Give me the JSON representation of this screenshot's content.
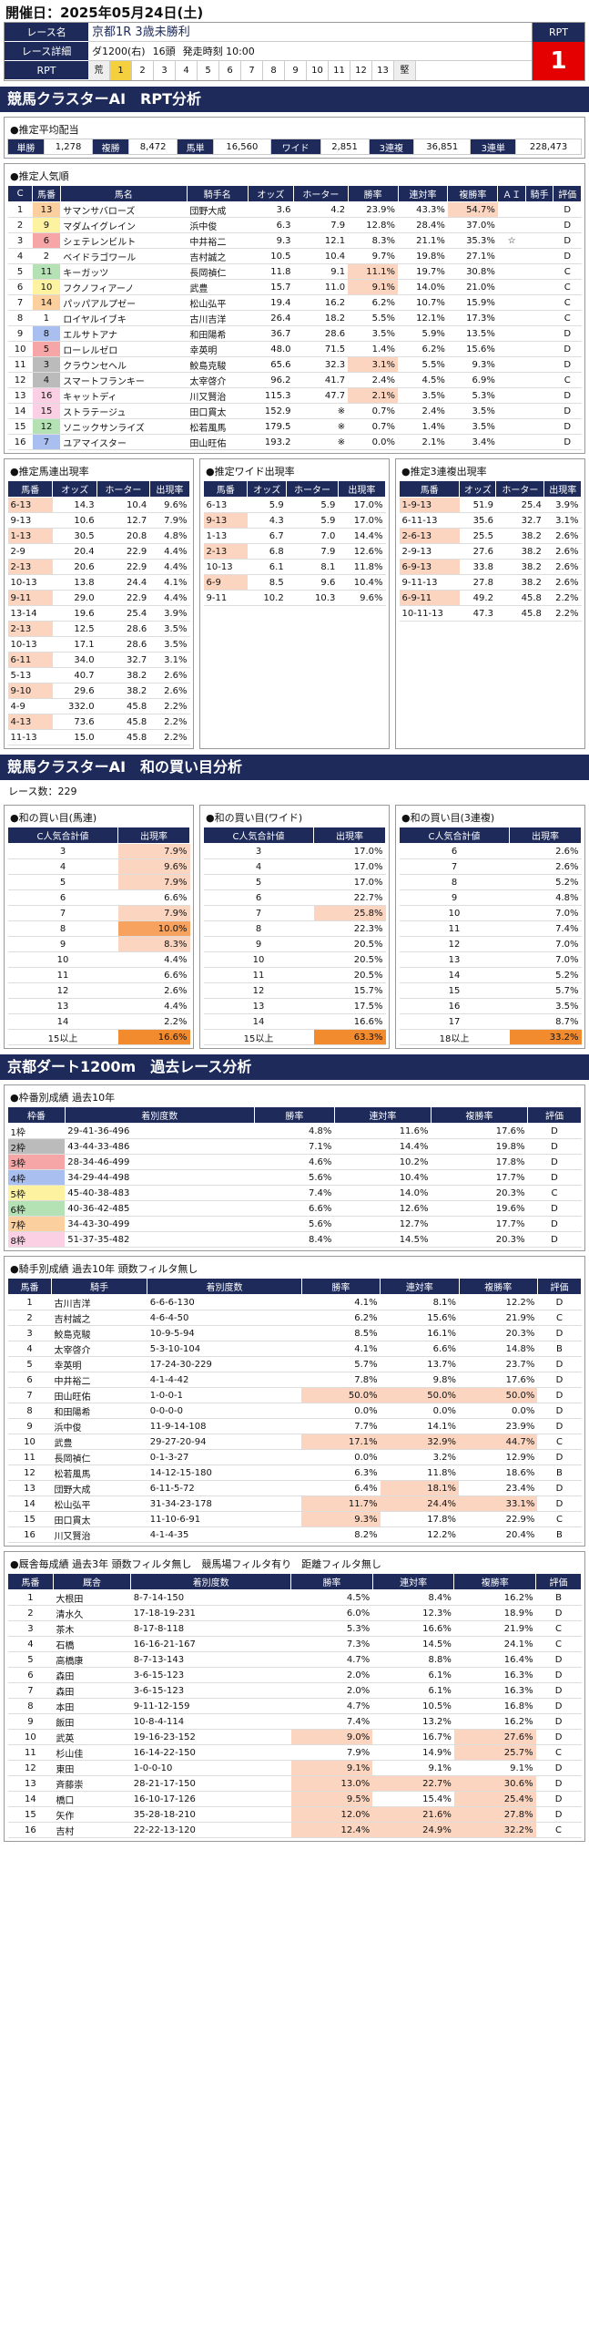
{
  "date": "開催日：2025年05月24日(土)",
  "race": {
    "labels": [
      "レース名",
      "レース詳細",
      "RPT"
    ],
    "title": "京都1R 3歳未勝利",
    "detail": [
      "ダ1200(右)",
      "16頭",
      "発走時刻 10:00"
    ],
    "rpt_cells": [
      "荒",
      "1",
      "2",
      "3",
      "4",
      "5",
      "6",
      "7",
      "8",
      "9",
      "10",
      "11",
      "12",
      "13",
      "堅"
    ],
    "rpt_label": "RPT",
    "rpt_value": "1"
  },
  "sec1": "競馬クラスターAI　RPT分析",
  "haito": {
    "title": "●推定平均配当",
    "items": [
      [
        "単勝",
        "1,278"
      ],
      [
        "複勝",
        "8,472"
      ],
      [
        "馬単",
        "16,560"
      ],
      [
        "ワイド",
        "2,851"
      ],
      [
        "3連複",
        "36,851"
      ],
      [
        "3連単",
        "228,473"
      ]
    ]
  },
  "ninki": {
    "title": "●推定人気順",
    "headers": [
      "C",
      "馬番",
      "馬名",
      "騎手名",
      "オッズ",
      "ホーター",
      "勝率",
      "連対率",
      "複勝率",
      "ＡＩ",
      "騎手",
      "評価"
    ],
    "rows": [
      [
        "1",
        "13",
        "サマンサバローズ",
        "団野大成",
        "3.6",
        "4.2",
        "23.9%",
        "43.3%",
        "54.7%",
        "",
        "",
        "D"
      ],
      [
        "2",
        "9",
        "マダムイグレイン",
        "浜中俊",
        "6.3",
        "7.9",
        "12.8%",
        "28.4%",
        "37.0%",
        "",
        "",
        "D"
      ],
      [
        "3",
        "6",
        "シェテレンビルト",
        "中井裕二",
        "9.3",
        "12.1",
        "8.3%",
        "21.1%",
        "35.3%",
        "☆",
        "",
        "D"
      ],
      [
        "4",
        "2",
        "ベイドラゴワール",
        "吉村誠之",
        "10.5",
        "10.4",
        "9.7%",
        "19.8%",
        "27.1%",
        "",
        "",
        "D"
      ],
      [
        "5",
        "11",
        "キーガッツ",
        "長岡禎仁",
        "11.8",
        "9.1",
        "11.1%",
        "19.7%",
        "30.8%",
        "",
        "",
        "C"
      ],
      [
        "6",
        "10",
        "フクノフィアーノ",
        "武豊",
        "15.7",
        "11.0",
        "9.1%",
        "14.0%",
        "21.0%",
        "",
        "",
        "C"
      ],
      [
        "7",
        "14",
        "パッパアルプゼー",
        "松山弘平",
        "19.4",
        "16.2",
        "6.2%",
        "10.7%",
        "15.9%",
        "",
        "",
        "C"
      ],
      [
        "8",
        "1",
        "ロイヤルイブキ",
        "古川吉洋",
        "26.4",
        "18.2",
        "5.5%",
        "12.1%",
        "17.3%",
        "",
        "",
        "C"
      ],
      [
        "9",
        "8",
        "エルサトアナ",
        "和田陽希",
        "36.7",
        "28.6",
        "3.5%",
        "5.9%",
        "13.5%",
        "",
        "",
        "D"
      ],
      [
        "10",
        "5",
        "ローレルゼロ",
        "幸英明",
        "48.0",
        "71.5",
        "1.4%",
        "6.2%",
        "15.6%",
        "",
        "",
        "D"
      ],
      [
        "11",
        "3",
        "クラウンセヘル",
        "鮫島克駿",
        "65.6",
        "32.3",
        "3.1%",
        "5.5%",
        "9.3%",
        "",
        "",
        "D"
      ],
      [
        "12",
        "4",
        "スマートフランキー",
        "太宰啓介",
        "96.2",
        "41.7",
        "2.4%",
        "4.5%",
        "6.9%",
        "",
        "",
        "C"
      ],
      [
        "13",
        "16",
        "キャットディ",
        "川又賢治",
        "115.3",
        "47.7",
        "2.1%",
        "3.5%",
        "5.3%",
        "",
        "",
        "D"
      ],
      [
        "14",
        "15",
        "ストラテージュ",
        "田口貫太",
        "152.9",
        "※",
        "0.7%",
        "2.4%",
        "3.5%",
        "",
        "",
        "D"
      ],
      [
        "15",
        "12",
        "ソニックサンライズ",
        "松若風馬",
        "179.5",
        "※",
        "0.7%",
        "1.4%",
        "3.5%",
        "",
        "",
        "D"
      ],
      [
        "16",
        "7",
        "ユアマイスター",
        "田山旺佑",
        "193.2",
        "※",
        "0.0%",
        "2.1%",
        "3.4%",
        "",
        "",
        "D"
      ]
    ]
  },
  "umatan": {
    "title": "●推定馬連出現率",
    "headers": [
      "馬番",
      "オッズ",
      "ホーター",
      "出現率"
    ],
    "rows": [
      [
        "6-13",
        "14.3",
        "10.4",
        "9.6%"
      ],
      [
        "9-13",
        "10.6",
        "12.7",
        "7.9%"
      ],
      [
        "1-13",
        "30.5",
        "20.8",
        "4.8%"
      ],
      [
        "2-9",
        "20.4",
        "22.9",
        "4.4%"
      ],
      [
        "2-13",
        "20.6",
        "22.9",
        "4.4%"
      ],
      [
        "10-13",
        "13.8",
        "24.4",
        "4.1%"
      ],
      [
        "9-11",
        "29.0",
        "22.9",
        "4.4%"
      ],
      [
        "13-14",
        "19.6",
        "25.4",
        "3.9%"
      ],
      [
        "2-13",
        "12.5",
        "28.6",
        "3.5%"
      ],
      [
        "10-13",
        "17.1",
        "28.6",
        "3.5%"
      ],
      [
        "6-11",
        "34.0",
        "32.7",
        "3.1%"
      ],
      [
        "5-13",
        "40.7",
        "38.2",
        "2.6%"
      ],
      [
        "9-10",
        "29.6",
        "38.2",
        "2.6%"
      ],
      [
        "4-9",
        "332.0",
        "45.8",
        "2.2%"
      ],
      [
        "4-13",
        "73.6",
        "45.8",
        "2.2%"
      ],
      [
        "11-13",
        "15.0",
        "45.8",
        "2.2%"
      ]
    ]
  },
  "wide": {
    "title": "●推定ワイド出現率",
    "headers": [
      "馬番",
      "オッズ",
      "ホーター",
      "出現率"
    ],
    "rows": [
      [
        "6-13",
        "5.9",
        "5.9",
        "17.0%"
      ],
      [
        "9-13",
        "4.3",
        "5.9",
        "17.0%"
      ],
      [
        "1-13",
        "6.7",
        "7.0",
        "14.4%"
      ],
      [
        "2-13",
        "6.8",
        "7.9",
        "12.6%"
      ],
      [
        "10-13",
        "6.1",
        "8.1",
        "11.8%"
      ],
      [
        "6-9",
        "8.5",
        "9.6",
        "10.4%"
      ],
      [
        "9-11",
        "10.2",
        "10.3",
        "9.6%"
      ]
    ]
  },
  "sanfuku": {
    "title": "●推定3連複出現率",
    "headers": [
      "馬番",
      "オッズ",
      "ホーター",
      "出現率"
    ],
    "rows": [
      [
        "1-9-13",
        "51.9",
        "25.4",
        "3.9%"
      ],
      [
        "6-11-13",
        "35.6",
        "32.7",
        "3.1%"
      ],
      [
        "2-6-13",
        "25.5",
        "38.2",
        "2.6%"
      ],
      [
        "2-9-13",
        "27.6",
        "38.2",
        "2.6%"
      ],
      [
        "6-9-13",
        "33.8",
        "38.2",
        "2.6%"
      ],
      [
        "9-11-13",
        "27.8",
        "38.2",
        "2.6%"
      ],
      [
        "6-9-11",
        "49.2",
        "45.8",
        "2.2%"
      ],
      [
        "10-11-13",
        "47.3",
        "45.8",
        "2.2%"
      ]
    ]
  },
  "sec2": "競馬クラスターAI　和の買い目分析",
  "race_count": "レース数：229",
  "wa1": {
    "title": "●和の買い目(馬連)",
    "headers": [
      "C人気合計値",
      "出現率"
    ],
    "rows": [
      [
        "3",
        "7.9%"
      ],
      [
        "4",
        "9.6%"
      ],
      [
        "5",
        "7.9%"
      ],
      [
        "6",
        "6.6%"
      ],
      [
        "7",
        "7.9%"
      ],
      [
        "8",
        "10.0%"
      ],
      [
        "9",
        "8.3%"
      ],
      [
        "10",
        "4.4%"
      ],
      [
        "11",
        "6.6%"
      ],
      [
        "12",
        "2.6%"
      ],
      [
        "13",
        "4.4%"
      ],
      [
        "14",
        "2.2%"
      ],
      [
        "15以上",
        "16.6%"
      ]
    ]
  },
  "wa2": {
    "title": "●和の買い目(ワイド)",
    "headers": [
      "C人気合計値",
      "出現率"
    ],
    "rows": [
      [
        "3",
        "17.0%"
      ],
      [
        "4",
        "17.0%"
      ],
      [
        "5",
        "17.0%"
      ],
      [
        "6",
        "22.7%"
      ],
      [
        "7",
        "25.8%"
      ],
      [
        "8",
        "22.3%"
      ],
      [
        "9",
        "20.5%"
      ],
      [
        "10",
        "20.5%"
      ],
      [
        "11",
        "20.5%"
      ],
      [
        "12",
        "15.7%"
      ],
      [
        "13",
        "17.5%"
      ],
      [
        "14",
        "16.6%"
      ],
      [
        "15以上",
        "63.3%"
      ]
    ]
  },
  "wa3": {
    "title": "●和の買い目(3連複)",
    "headers": [
      "C人気合計値",
      "出現率"
    ],
    "rows": [
      [
        "6",
        "2.6%"
      ],
      [
        "7",
        "2.6%"
      ],
      [
        "8",
        "5.2%"
      ],
      [
        "9",
        "4.8%"
      ],
      [
        "10",
        "7.0%"
      ],
      [
        "11",
        "7.4%"
      ],
      [
        "12",
        "7.0%"
      ],
      [
        "13",
        "7.0%"
      ],
      [
        "14",
        "5.2%"
      ],
      [
        "15",
        "5.7%"
      ],
      [
        "16",
        "3.5%"
      ],
      [
        "17",
        "8.7%"
      ],
      [
        "18以上",
        "33.2%"
      ]
    ]
  },
  "sec3": "京都ダート1200m　過去レース分析",
  "waku": {
    "title": "●枠番別成績 過去10年",
    "headers": [
      "枠番",
      "着別度数",
      "勝率",
      "連対率",
      "複勝率",
      "評価"
    ],
    "rows": [
      [
        "1枠",
        "29-41-36-496",
        "4.8%",
        "11.6%",
        "17.6%",
        "D"
      ],
      [
        "2枠",
        "43-44-33-486",
        "7.1%",
        "14.4%",
        "19.8%",
        "D"
      ],
      [
        "3枠",
        "28-34-46-499",
        "4.6%",
        "10.2%",
        "17.8%",
        "D"
      ],
      [
        "4枠",
        "34-29-44-498",
        "5.6%",
        "10.4%",
        "17.7%",
        "D"
      ],
      [
        "5枠",
        "45-40-38-483",
        "7.4%",
        "14.0%",
        "20.3%",
        "C"
      ],
      [
        "6枠",
        "40-36-42-485",
        "6.6%",
        "12.6%",
        "19.6%",
        "D"
      ],
      [
        "7枠",
        "34-43-30-499",
        "5.6%",
        "12.7%",
        "17.7%",
        "D"
      ],
      [
        "8枠",
        "51-37-35-482",
        "8.4%",
        "14.5%",
        "20.3%",
        "D"
      ]
    ]
  },
  "kishu": {
    "title": "●騎手別成績 過去10年 頭数フィルタ無し",
    "headers": [
      "馬番",
      "騎手",
      "着別度数",
      "勝率",
      "連対率",
      "複勝率",
      "評価"
    ],
    "rows": [
      [
        "1",
        "古川吉洋",
        "6-6-6-130",
        "4.1%",
        "8.1%",
        "12.2%",
        "D"
      ],
      [
        "2",
        "吉村誠之",
        "4-6-4-50",
        "6.2%",
        "15.6%",
        "21.9%",
        "C"
      ],
      [
        "3",
        "鮫島克駿",
        "10-9-5-94",
        "8.5%",
        "16.1%",
        "20.3%",
        "D"
      ],
      [
        "4",
        "太宰啓介",
        "5-3-10-104",
        "4.1%",
        "6.6%",
        "14.8%",
        "B"
      ],
      [
        "5",
        "幸英明",
        "17-24-30-229",
        "5.7%",
        "13.7%",
        "23.7%",
        "D"
      ],
      [
        "6",
        "中井裕二",
        "4-1-4-42",
        "7.8%",
        "9.8%",
        "17.6%",
        "D"
      ],
      [
        "7",
        "田山旺佑",
        "1-0-0-1",
        "50.0%",
        "50.0%",
        "50.0%",
        "D"
      ],
      [
        "8",
        "和田陽希",
        "0-0-0-0",
        "0.0%",
        "0.0%",
        "0.0%",
        "D"
      ],
      [
        "9",
        "浜中俊",
        "11-9-14-108",
        "7.7%",
        "14.1%",
        "23.9%",
        "D"
      ],
      [
        "10",
        "武豊",
        "29-27-20-94",
        "17.1%",
        "32.9%",
        "44.7%",
        "C"
      ],
      [
        "11",
        "長岡禎仁",
        "0-1-3-27",
        "0.0%",
        "3.2%",
        "12.9%",
        "D"
      ],
      [
        "12",
        "松若風馬",
        "14-12-15-180",
        "6.3%",
        "11.8%",
        "18.6%",
        "B"
      ],
      [
        "13",
        "団野大成",
        "6-11-5-72",
        "6.4%",
        "18.1%",
        "23.4%",
        "D"
      ],
      [
        "14",
        "松山弘平",
        "31-34-23-178",
        "11.7%",
        "24.4%",
        "33.1%",
        "D"
      ],
      [
        "15",
        "田口貫太",
        "11-10-6-91",
        "9.3%",
        "17.8%",
        "22.9%",
        "C"
      ],
      [
        "16",
        "川又賢治",
        "4-1-4-35",
        "8.2%",
        "12.2%",
        "20.4%",
        "B"
      ]
    ]
  },
  "kyusha": {
    "title": "●厩舎毎成績 過去3年 頭数フィルタ無し　競馬場フィルタ有り　距離フィルタ無し",
    "headers": [
      "馬番",
      "厩舎",
      "着別度数",
      "勝率",
      "連対率",
      "複勝率",
      "評価"
    ],
    "rows": [
      [
        "1",
        "大根田",
        "8-7-14-150",
        "4.5%",
        "8.4%",
        "16.2%",
        "B"
      ],
      [
        "2",
        "清水久",
        "17-18-19-231",
        "6.0%",
        "12.3%",
        "18.9%",
        "D"
      ],
      [
        "3",
        "茶木",
        "8-17-8-118",
        "5.3%",
        "16.6%",
        "21.9%",
        "C"
      ],
      [
        "4",
        "石橋",
        "16-16-21-167",
        "7.3%",
        "14.5%",
        "24.1%",
        "C"
      ],
      [
        "5",
        "高橋康",
        "8-7-13-143",
        "4.7%",
        "8.8%",
        "16.4%",
        "D"
      ],
      [
        "6",
        "森田",
        "3-6-15-123",
        "2.0%",
        "6.1%",
        "16.3%",
        "D"
      ],
      [
        "7",
        "森田",
        "3-6-15-123",
        "2.0%",
        "6.1%",
        "16.3%",
        "D"
      ],
      [
        "8",
        "本田",
        "9-11-12-159",
        "4.7%",
        "10.5%",
        "16.8%",
        "D"
      ],
      [
        "9",
        "飯田",
        "10-8-4-114",
        "7.4%",
        "13.2%",
        "16.2%",
        "D"
      ],
      [
        "10",
        "武英",
        "19-16-23-152",
        "9.0%",
        "16.7%",
        "27.6%",
        "D"
      ],
      [
        "11",
        "杉山佳",
        "16-14-22-150",
        "7.9%",
        "14.9%",
        "25.7%",
        "C"
      ],
      [
        "12",
        "東田",
        "1-0-0-10",
        "9.1%",
        "9.1%",
        "9.1%",
        "D"
      ],
      [
        "13",
        "斉藤崇",
        "28-21-17-150",
        "13.0%",
        "22.7%",
        "30.6%",
        "D"
      ],
      [
        "14",
        "橋口",
        "16-10-17-126",
        "9.5%",
        "15.4%",
        "25.4%",
        "D"
      ],
      [
        "15",
        "矢作",
        "35-28-18-210",
        "12.0%",
        "21.6%",
        "27.8%",
        "D"
      ],
      [
        "16",
        "吉村",
        "22-22-13-120",
        "12.4%",
        "24.9%",
        "32.2%",
        "C"
      ]
    ]
  }
}
